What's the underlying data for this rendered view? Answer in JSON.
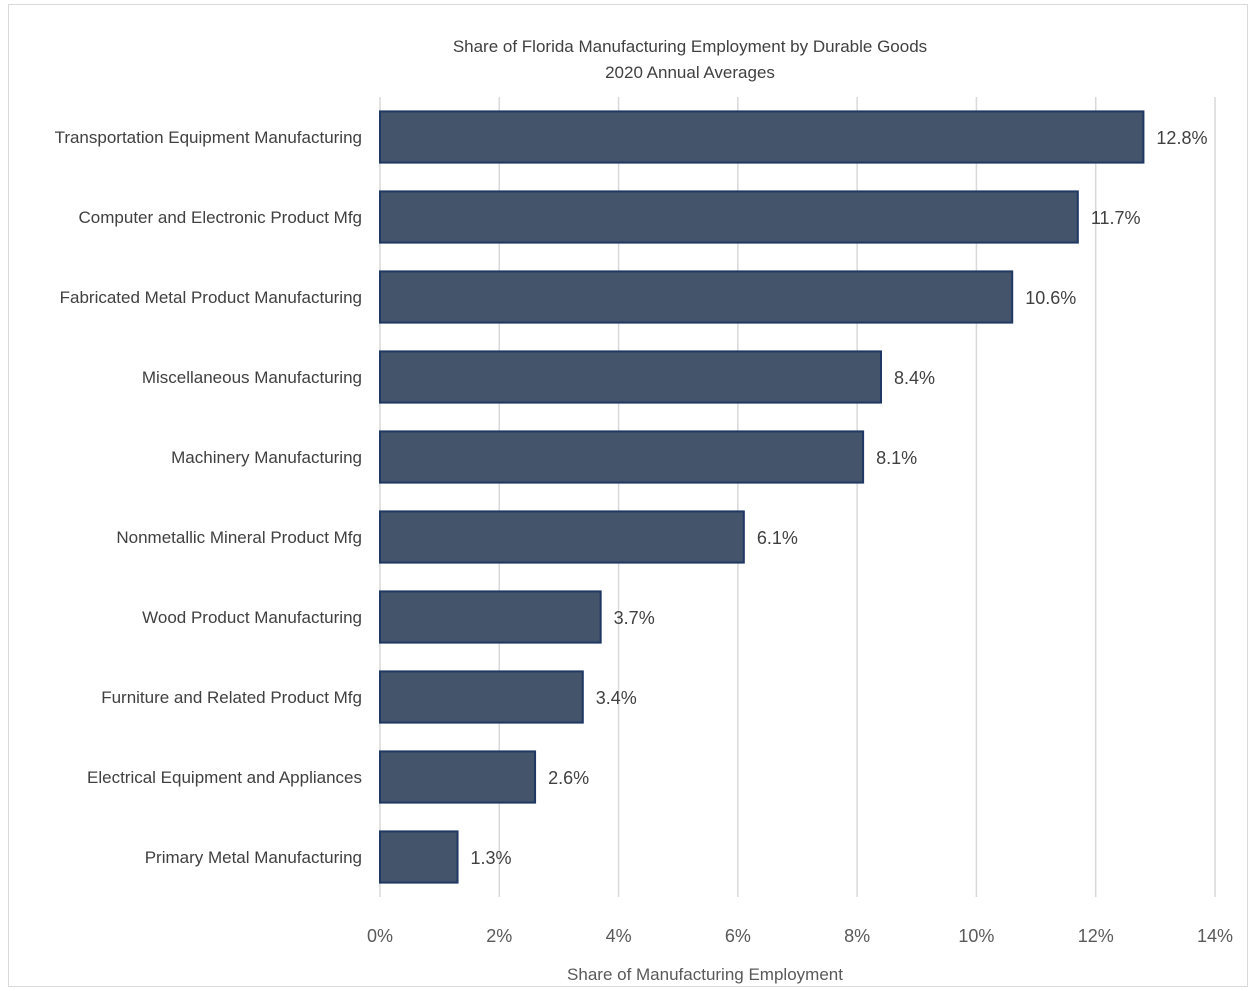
{
  "chart_data": {
    "type": "bar",
    "orientation": "horizontal",
    "title": "Share of Florida Manufacturing Employment by Durable Goods",
    "subtitle": "2020 Annual Averages",
    "xlabel": "Share of Manufacturing Employment",
    "ylabel": "",
    "categories": [
      "Transportation Equipment Manufacturing",
      "Computer and Electronic Product Mfg",
      "Fabricated Metal Product Manufacturing",
      "Miscellaneous Manufacturing",
      "Machinery Manufacturing",
      "Nonmetallic Mineral Product Mfg",
      "Wood Product Manufacturing",
      "Furniture and Related Product Mfg",
      "Electrical Equipment and Appliances",
      "Primary Metal Manufacturing"
    ],
    "values": [
      12.8,
      11.7,
      10.6,
      8.4,
      8.1,
      6.1,
      3.7,
      3.4,
      2.6,
      1.3
    ],
    "data_labels": [
      "12.8%",
      "11.7%",
      "10.6%",
      "8.4%",
      "8.1%",
      "6.1%",
      "3.7%",
      "3.4%",
      "2.6%",
      "1.3%"
    ],
    "xlim": [
      0,
      14
    ],
    "xticks": [
      0,
      2,
      4,
      6,
      8,
      10,
      12,
      14
    ],
    "xtick_labels": [
      "0%",
      "2%",
      "4%",
      "6%",
      "8%",
      "10%",
      "12%",
      "14%"
    ],
    "grid": "vertical",
    "legend": "none",
    "colors": {
      "bar_fill": "#44546a",
      "bar_border": "#1f3864",
      "grid": "#d9d9d9"
    }
  }
}
